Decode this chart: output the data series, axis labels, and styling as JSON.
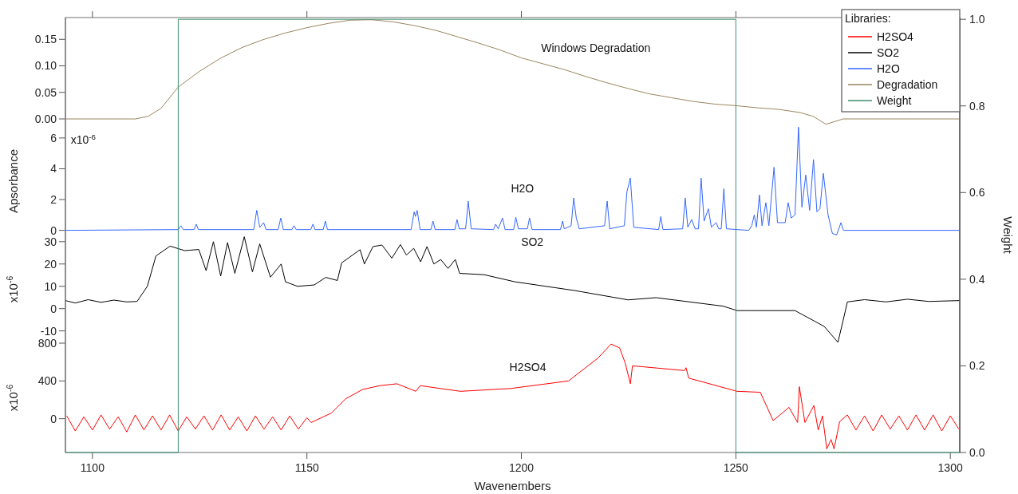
{
  "chart_data": [
    {
      "type": "line",
      "xlim": [
        1093.7,
        1302.2
      ],
      "ylim": [
        -0.015,
        0.191
      ],
      "yticks": [
        {
          "value": 0,
          "label": "0.00"
        },
        {
          "value": 0.05,
          "label": "0.05"
        },
        {
          "value": 0.1,
          "label": "0.10"
        },
        {
          "value": 0.15,
          "label": "0.15"
        }
      ],
      "tick_labels": "y",
      "annotations": [
        "Windows Degradation"
      ],
      "series": [
        {
          "name": "Degradation",
          "color": "#9a8660",
          "x": [
            1093.7,
            1110,
            1113,
            1116,
            1120,
            1125,
            1130,
            1135,
            1140,
            1145,
            1150,
            1155,
            1160,
            1165,
            1170,
            1175,
            1180,
            1185,
            1190,
            1195,
            1200,
            1205,
            1210,
            1215,
            1220,
            1225,
            1230,
            1235,
            1240,
            1245,
            1250,
            1255,
            1260,
            1265,
            1268,
            1271,
            1273,
            1275,
            1302.2
          ],
          "values": [
            0,
            0,
            0.005,
            0.02,
            0.06,
            0.09,
            0.115,
            0.135,
            0.15,
            0.162,
            0.172,
            0.18,
            0.186,
            0.187,
            0.183,
            0.176,
            0.167,
            0.155,
            0.143,
            0.13,
            0.115,
            0.104,
            0.093,
            0.08,
            0.068,
            0.057,
            0.047,
            0.04,
            0.033,
            0.028,
            0.025,
            0.021,
            0.018,
            0.012,
            0.005,
            -0.01,
            -0.005,
            0,
            0
          ]
        }
      ]
    },
    {
      "type": "line",
      "xlim": [
        1093.7,
        1302.2
      ],
      "ylim": [
        -0.33,
        6.72
      ],
      "yticks": [
        0,
        2,
        4,
        6
      ],
      "tick_labels": "y",
      "ylabel": "Apsorbance",
      "annotations": [
        "H2O",
        "x10$^{-6}$"
      ],
      "series": [
        {
          "name": "H2O",
          "color": "#3366ff",
          "x": [
            1093.7,
            1120,
            1120.6,
            1121.2,
            1123.7,
            1124.2,
            1124.7,
            1137.6,
            1138.3,
            1139,
            1139.9,
            1140.5,
            1143.3,
            1143.9,
            1144.5,
            1146.5,
            1147,
            1147.5,
            1150.9,
            1151.4,
            1151.9,
            1153.8,
            1154.3,
            1154.8,
            1174.3,
            1175,
            1175.3,
            1175.7,
            1176.4,
            1178.9,
            1179.4,
            1179.9,
            1184.5,
            1185,
            1185.5,
            1187,
            1187.6,
            1188.3,
            1193.5,
            1194,
            1194.6,
            1195.6,
            1196.2,
            1198.2,
            1198.7,
            1199.3,
            1201.4,
            1201.9,
            1202.5,
            1209.1,
            1209.6,
            1210,
            1211.6,
            1212.2,
            1212.8,
            1213.5,
            1219.4,
            1220,
            1220.6,
            1224,
            1224.6,
            1225.4,
            1226.2,
            1232,
            1232.5,
            1233,
            1237.6,
            1238.2,
            1238.8,
            1239.7,
            1240.5,
            1241.3,
            1241.9,
            1242.6,
            1243.6,
            1244.3,
            1245.4,
            1246,
            1246.6,
            1247.2,
            1247.8,
            1253,
            1253.7,
            1254.3,
            1254.8,
            1255.5,
            1256.1,
            1257,
            1257.7,
            1258.9,
            1259.7,
            1261.5,
            1262.2,
            1262.9,
            1263.8,
            1264.6,
            1265.4,
            1266.3,
            1267.2,
            1268.1,
            1268.9,
            1269.6,
            1270.4,
            1271.5,
            1272.5,
            1273.5,
            1274.5,
            1275.1,
            1302.2
          ],
          "values": [
            0,
            0.05,
            0.3,
            0.05,
            0.05,
            0.4,
            0.05,
            0.05,
            1.3,
            0.2,
            0.5,
            0.05,
            0.05,
            0.8,
            0.05,
            0.05,
            0.3,
            0.05,
            0.05,
            0.4,
            0.05,
            0.05,
            0.6,
            0.05,
            0.05,
            1.2,
            0.9,
            1.3,
            0.05,
            0.05,
            0.6,
            0.05,
            0.05,
            0.7,
            0.1,
            0.1,
            1.9,
            0.1,
            0.05,
            0.4,
            0.1,
            0.8,
            0.05,
            0.05,
            0.85,
            0.1,
            0.1,
            0.8,
            0.05,
            0.05,
            0.6,
            0.1,
            0.3,
            2.1,
            0.8,
            0.1,
            0.3,
            1.9,
            0.1,
            0.3,
            2.5,
            3.4,
            0.2,
            0.05,
            0.9,
            0.05,
            0.1,
            2.1,
            0.2,
            0.7,
            0.1,
            0.1,
            3.4,
            0.6,
            1.4,
            0.2,
            0.5,
            0.1,
            0.1,
            2.7,
            0.1,
            0,
            0.3,
            1.0,
            0.2,
            2.3,
            0.3,
            1.8,
            0.3,
            4.1,
            0.5,
            0.5,
            1.8,
            0.8,
            1.0,
            6.7,
            1.5,
            3.6,
            1.3,
            4.6,
            1.2,
            1.4,
            3.7,
            1.0,
            -0.2,
            -0.3,
            0.5,
            0,
            0
          ]
        }
      ]
    },
    {
      "type": "line",
      "xlim": [
        1093.7,
        1302.2
      ],
      "ylim": [
        -15.5,
        32.8
      ],
      "yticks": [
        -10,
        0,
        10,
        20,
        30
      ],
      "tick_labels": "y",
      "ylabel": "x10$^{-6}$",
      "annotations": [
        "SO2"
      ],
      "series": [
        {
          "name": "SO2",
          "color": "#000000",
          "x": [
            1093.7,
            1096,
            1099,
            1102,
            1105,
            1108,
            1110.4,
            1112.8,
            1114.8,
            1118.1,
            1121.5,
            1124.8,
            1126.5,
            1128.2,
            1129.9,
            1131.5,
            1133.2,
            1135.4,
            1137.3,
            1139,
            1141.5,
            1144,
            1145,
            1147.8,
            1151.7,
            1154.4,
            1157.1,
            1158.1,
            1162.4,
            1163.4,
            1165.4,
            1167.5,
            1169.8,
            1171.8,
            1173.2,
            1174.9,
            1176.5,
            1178,
            1179.6,
            1181.2,
            1182.9,
            1184.6,
            1185.6,
            1191.3,
            1198.5,
            1212.4,
            1224.9,
            1231.4,
            1247,
            1250.3,
            1263.8,
            1270.6,
            1273.8,
            1275,
            1276,
            1280,
            1285,
            1290,
            1295,
            1302.2
          ],
          "values": [
            3.6,
            2.5,
            4,
            2.8,
            3.8,
            3,
            3.2,
            10,
            23.6,
            28,
            26,
            26.5,
            17,
            30,
            14.6,
            29.6,
            15.8,
            32.2,
            16.5,
            29,
            14.1,
            20,
            12,
            10,
            10.6,
            14,
            12.6,
            20.5,
            26.4,
            20,
            27.8,
            28.5,
            22.6,
            28.7,
            24,
            27,
            21,
            27.8,
            20,
            22,
            18,
            22,
            15.8,
            15.2,
            12,
            8.1,
            3.9,
            4.9,
            1.1,
            -0.9,
            -0.9,
            -8,
            -15.1,
            -5.4,
            3,
            4,
            3,
            4.2,
            3.2,
            3.6
          ]
        }
      ]
    },
    {
      "type": "line",
      "xlim": [
        1093.7,
        1302.2
      ],
      "ylim": [
        -358,
        800
      ],
      "yticks": [
        0,
        400,
        800
      ],
      "tick_labels": "y",
      "ylabel": "x10$^{-6}$",
      "annotations": [
        "H2SO4"
      ],
      "series": [
        {
          "name": "H2SO4",
          "color": "#ff0000",
          "x": [
            1094,
            1096,
            1098,
            1100,
            1102,
            1104,
            1106,
            1108,
            1110,
            1112,
            1114,
            1116,
            1118,
            1120,
            1122,
            1124,
            1126,
            1128,
            1130,
            1132,
            1134,
            1136,
            1138,
            1140,
            1142,
            1144,
            1146,
            1148,
            1150,
            1151,
            1155.7,
            1159,
            1163,
            1167,
            1171,
            1175.4,
            1176.4,
            1185.8,
            1197.5,
            1211,
            1217.8,
            1220.9,
            1222.9,
            1224.2,
            1225.4,
            1225.9,
            1238,
            1238.4,
            1239,
            1250.3,
            1255.7,
            1258.7,
            1262.4,
            1264.4,
            1264.8,
            1266.1,
            1268.2,
            1269.2,
            1270.2,
            1271.2,
            1272.2,
            1272.9,
            1274.2,
            1276,
            1278,
            1280,
            1282,
            1284,
            1286,
            1288,
            1290,
            1292,
            1294,
            1296,
            1298,
            1300,
            1302
          ],
          "values": [
            30,
            -130,
            20,
            -120,
            40,
            -110,
            20,
            -140,
            40,
            -120,
            30,
            -120,
            40,
            -130,
            20,
            -110,
            30,
            -120,
            40,
            -120,
            20,
            -130,
            30,
            -110,
            20,
            -120,
            30,
            -110,
            10,
            -40,
            60,
            210,
            310,
            350,
            370,
            290,
            350,
            290,
            320,
            400,
            640,
            790,
            750,
            590,
            370,
            560,
            510,
            540,
            430,
            290,
            280,
            -20,
            120,
            -40,
            340,
            -40,
            140,
            -120,
            30,
            -320,
            -220,
            -320,
            -30,
            40,
            -120,
            30,
            -130,
            40,
            -110,
            30,
            -120,
            40,
            -120,
            40,
            -130,
            30,
            -110
          ]
        }
      ]
    },
    {
      "type": "line",
      "xlim": [
        1093.7,
        1302.2
      ],
      "xticks": [
        1100,
        1150,
        1200,
        1250,
        1300
      ],
      "xlabel": "Wavenembers",
      "y2label": "Weight",
      "y2lim": [
        0,
        1.004
      ],
      "y2ticks": [
        {
          "value": 0,
          "label": "0.0"
        },
        0.2,
        0.4,
        0.6,
        0.8,
        {
          "value": 1,
          "label": "1.0"
        }
      ],
      "legend": "top right",
      "legend_title": "Libraries:",
      "series": [
        {
          "name": "Weight",
          "color": "#3d8f6e",
          "axis": "y2",
          "x": [
            1093.7,
            1120,
            1120,
            1250,
            1250,
            1302.2
          ],
          "values": [
            0,
            0,
            1,
            1,
            0,
            0
          ]
        }
      ]
    }
  ]
}
